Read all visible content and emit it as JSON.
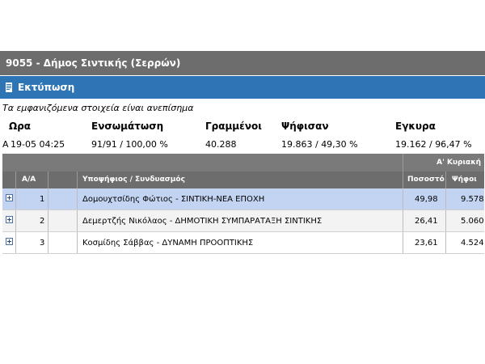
{
  "header": {
    "title": "9055 - Δήμος Σιντικής (Σερρών)"
  },
  "print": {
    "label": "Εκτύπωση"
  },
  "notice": "Τα εμφανιζόμενα στοιχεία είναι ανεπίσημα",
  "stats": {
    "labels": {
      "time": "Ωρα",
      "incorporation": "Ενσωμάτωση",
      "registered": "Γραμμένοι",
      "voted": "Ψήφισαν",
      "valid": "Εγκυρα"
    },
    "prefix": "Α",
    "time": "19-05 04:25",
    "incorporation": "91/91 / 100,00 %",
    "registered": "40.288",
    "voted": "19.863 / 49,30 %",
    "valid": "19.162 / 96,47 %"
  },
  "table": {
    "round_label": "Α' Κυριακή",
    "columns": {
      "aa": "Α/Α",
      "candidate": "Υποψήφιος / Συνδυασμός",
      "percent": "Ποσοστό",
      "votes": "Ψήφοι"
    },
    "rows": [
      {
        "aa": "1",
        "candidate": "Δομουχτσίδης Φώτιος - ΣΙΝΤΙΚΗ-ΝΕΑ ΕΠΟΧΗ",
        "percent": "49,98",
        "votes": "9.578"
      },
      {
        "aa": "2",
        "candidate": "Δεμερτζής Νικόλαος - ΔΗΜΟΤΙΚΗ ΣΥΜΠΑΡΑΤΑΞΗ ΣΙΝΤΙΚΗΣ",
        "percent": "26,41",
        "votes": "5.060"
      },
      {
        "aa": "3",
        "candidate": "Κοσμίδης Σάββας - ΔΥΝΑΜΗ ΠΡΟΟΠΤΙΚΗΣ",
        "percent": "23,61",
        "votes": "4.524"
      }
    ]
  },
  "colors": {
    "title_bar": "#6d6d6d",
    "print_bar": "#2e75b6",
    "highlight_row": "#c3d4f2"
  }
}
